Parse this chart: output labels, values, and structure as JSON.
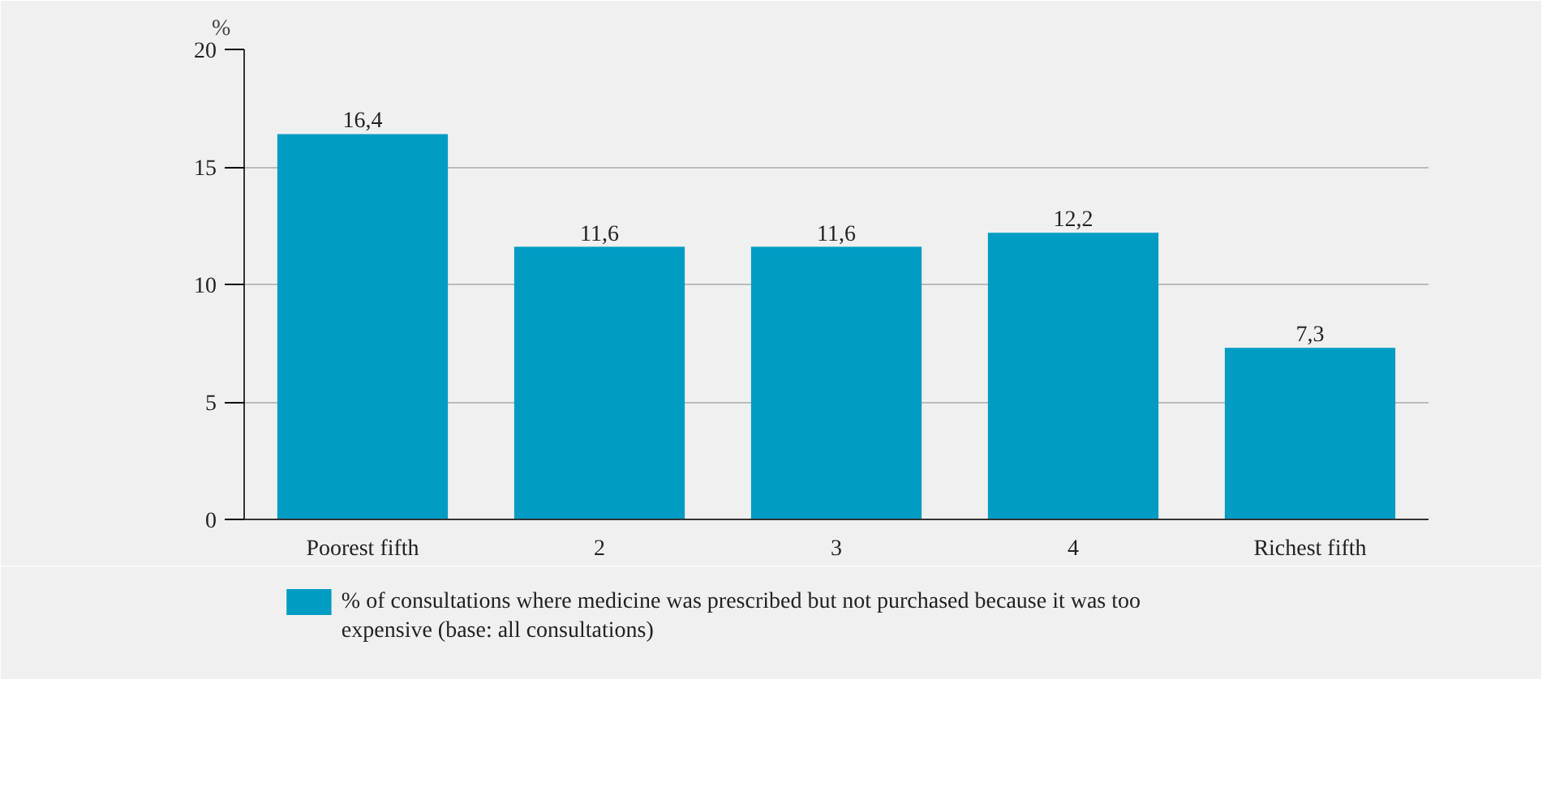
{
  "chart_data": {
    "type": "bar",
    "ylabel": "%",
    "categories": [
      "Poorest fifth",
      "2",
      "3",
      "4",
      "Richest fifth"
    ],
    "series": [
      {
        "name": "% of consultations where medicine was prescribed but not purchased because it was too expensive (base: all consultations)",
        "color": "#009cc4",
        "values": [
          16.4,
          11.6,
          11.6,
          12.2,
          7.3
        ],
        "value_labels": [
          "16,4",
          "11,6",
          "11,6",
          "12,2",
          "7,3"
        ]
      }
    ],
    "ylim": [
      0,
      20
    ],
    "yticks": [
      0,
      5,
      10,
      15,
      20
    ],
    "grid": "y",
    "legend": "bottom"
  }
}
